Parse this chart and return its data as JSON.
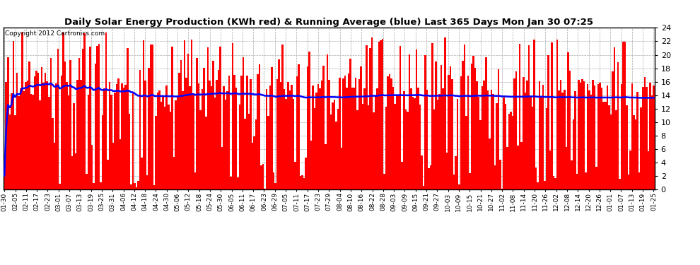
{
  "title": "Daily Solar Energy Production (KWh red) & Running Average (blue) Last 365 Days Mon Jan 30 07:25",
  "copyright": "Copyright 2012 Cartronics.com",
  "bar_color": "#FF0000",
  "line_color": "#0000FF",
  "background_color": "#FFFFFF",
  "grid_color": "#AAAAAA",
  "ylim": [
    0,
    24.0
  ],
  "yticks": [
    0.0,
    2.0,
    4.0,
    6.0,
    8.0,
    10.0,
    12.0,
    14.0,
    16.0,
    18.0,
    20.0,
    22.0,
    24.0
  ],
  "num_bars": 365,
  "xtick_labels": [
    "01-30",
    "02-05",
    "02-11",
    "02-17",
    "02-23",
    "03-01",
    "03-07",
    "03-13",
    "03-19",
    "03-25",
    "03-31",
    "04-06",
    "04-12",
    "04-18",
    "04-24",
    "04-30",
    "05-06",
    "05-12",
    "05-18",
    "05-24",
    "05-30",
    "06-05",
    "06-11",
    "06-17",
    "06-23",
    "06-29",
    "07-05",
    "07-11",
    "07-17",
    "07-23",
    "07-29",
    "08-04",
    "08-10",
    "08-16",
    "08-22",
    "08-28",
    "09-03",
    "09-09",
    "09-15",
    "09-21",
    "09-27",
    "10-03",
    "10-09",
    "10-15",
    "10-21",
    "10-27",
    "11-02",
    "11-08",
    "11-14",
    "11-20",
    "11-26",
    "12-02",
    "12-08",
    "12-14",
    "12-20",
    "12-26",
    "01-01",
    "01-07",
    "01-13",
    "01-19",
    "01-25"
  ]
}
